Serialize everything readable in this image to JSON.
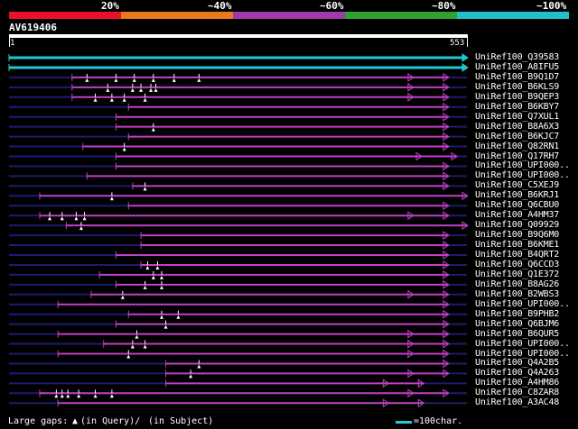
{
  "scale": {
    "labels": [
      "20%",
      "~40%",
      "~60%",
      "~80%",
      "~100%"
    ],
    "band_colors": [
      "#e8102a",
      "#e87a18",
      "#a03aa8",
      "#30a030",
      "#20c0c8"
    ]
  },
  "query": {
    "name": "AV619406",
    "start": "1",
    "end": "553"
  },
  "colors": {
    "magenta": "#c040c8",
    "cyan": "#20c8d0",
    "navy": "#1c1c70",
    "dark_magenta": "#6a1a70",
    "gap": "#ffffff"
  },
  "hits": [
    {
      "name": "UniRef100_Q39583",
      "color": "cyan",
      "start": 1,
      "end": 553,
      "gaps": [],
      "arrow": 0
    },
    {
      "name": "UniRef100_A8IFU5",
      "color": "cyan",
      "start": 1,
      "end": 553,
      "gaps": [],
      "arrow": 0
    },
    {
      "name": "UniRef100_B9Q1D7",
      "color": "magenta",
      "start": 77,
      "end": 530,
      "gaps": [
        95,
        130,
        152,
        175,
        200,
        230
      ],
      "arrow": 1
    },
    {
      "name": "UniRef100_B6KLS9",
      "color": "magenta",
      "start": 77,
      "end": 530,
      "gaps": [
        120,
        150,
        160,
        172,
        178
      ],
      "arrow": 1
    },
    {
      "name": "UniRef100_B9QEP3",
      "color": "magenta",
      "start": 77,
      "end": 530,
      "gaps": [
        105,
        125,
        140,
        165
      ],
      "arrow": 1
    },
    {
      "name": "UniRef100_B6KBY7",
      "color": "magenta",
      "start": 145,
      "end": 530,
      "gaps": [],
      "arrow": 0
    },
    {
      "name": "UniRef100_Q7XUL1",
      "color": "magenta",
      "start": 130,
      "end": 530,
      "gaps": [],
      "arrow": 0
    },
    {
      "name": "UniRef100_B8A6X3",
      "color": "magenta",
      "start": 130,
      "end": 530,
      "gaps": [
        175
      ],
      "arrow": 0
    },
    {
      "name": "UniRef100_B6KJC7",
      "color": "magenta",
      "start": 145,
      "end": 530,
      "gaps": [],
      "arrow": 0
    },
    {
      "name": "UniRef100_Q82RN1",
      "color": "magenta",
      "start": 90,
      "end": 530,
      "gaps": [
        140
      ],
      "arrow": 0
    },
    {
      "name": "UniRef100_Q17RH7",
      "color": "magenta",
      "start": 130,
      "end": 540,
      "gaps": [],
      "arrow": 1
    },
    {
      "name": "UniRef100_UPI000..",
      "color": "magenta",
      "start": 130,
      "end": 530,
      "gaps": [],
      "arrow": 0
    },
    {
      "name": "UniRef100_UPI000..",
      "color": "magenta",
      "start": 95,
      "end": 530,
      "gaps": [],
      "arrow": 0
    },
    {
      "name": "UniRef100_C5XEJ9",
      "color": "magenta",
      "start": 150,
      "end": 530,
      "gaps": [
        165
      ],
      "arrow": 0
    },
    {
      "name": "UniRef100_B6KRJ1",
      "color": "magenta",
      "start": 38,
      "end": 553,
      "gaps": [
        125
      ],
      "arrow": 0
    },
    {
      "name": "UniRef100_Q6CBU0",
      "color": "magenta",
      "start": 145,
      "end": 530,
      "gaps": [],
      "arrow": 0
    },
    {
      "name": "UniRef100_A4HM37",
      "color": "magenta",
      "start": 38,
      "end": 530,
      "gaps": [
        50,
        65,
        82,
        92
      ],
      "arrow": 1
    },
    {
      "name": "UniRef100_Q09929",
      "color": "magenta",
      "start": 70,
      "end": 553,
      "gaps": [
        88
      ],
      "arrow": 0
    },
    {
      "name": "UniRef100_B9Q6M0",
      "color": "magenta",
      "start": 160,
      "end": 530,
      "gaps": [],
      "arrow": 0
    },
    {
      "name": "UniRef100_B6KME1",
      "color": "magenta",
      "start": 160,
      "end": 530,
      "gaps": [],
      "arrow": 0
    },
    {
      "name": "UniRef100_B4QRT2",
      "color": "magenta",
      "start": 130,
      "end": 530,
      "gaps": [],
      "arrow": 0
    },
    {
      "name": "UniRef100_Q6CCD3",
      "color": "magenta",
      "start": 160,
      "end": 530,
      "gaps": [
        168,
        180
      ],
      "arrow": 0
    },
    {
      "name": "UniRef100_Q1E372",
      "color": "magenta",
      "start": 110,
      "end": 530,
      "gaps": [
        175,
        185
      ],
      "arrow": 0
    },
    {
      "name": "UniRef100_B8AG26",
      "color": "magenta",
      "start": 130,
      "end": 530,
      "gaps": [
        165,
        185
      ],
      "arrow": 0
    },
    {
      "name": "UniRef100_B2WBS3",
      "color": "magenta",
      "start": 100,
      "end": 530,
      "gaps": [
        138
      ],
      "arrow": 1
    },
    {
      "name": "UniRef100_UPI000..",
      "color": "magenta",
      "start": 60,
      "end": 530,
      "gaps": [],
      "arrow": 0
    },
    {
      "name": "UniRef100_B9PHB2",
      "color": "magenta",
      "start": 145,
      "end": 530,
      "gaps": [
        185,
        205
      ],
      "arrow": 0
    },
    {
      "name": "UniRef100_Q6BJM6",
      "color": "magenta",
      "start": 130,
      "end": 530,
      "gaps": [
        190
      ],
      "arrow": 0
    },
    {
      "name": "UniRef100_B6QUR5",
      "color": "magenta",
      "start": 60,
      "end": 530,
      "gaps": [
        155
      ],
      "arrow": 1
    },
    {
      "name": "UniRef100_UPI000..",
      "color": "magenta",
      "start": 115,
      "end": 530,
      "gaps": [
        150,
        165
      ],
      "arrow": 1
    },
    {
      "name": "UniRef100_UPI000..",
      "color": "magenta",
      "start": 60,
      "end": 530,
      "gaps": [
        145
      ],
      "arrow": 1
    },
    {
      "name": "UniRef100_Q4A2B5",
      "color": "magenta",
      "start": 190,
      "end": 530,
      "gaps": [
        230
      ],
      "arrow": 0
    },
    {
      "name": "UniRef100_Q4A263",
      "color": "magenta",
      "start": 190,
      "end": 530,
      "gaps": [
        220
      ],
      "arrow": 1
    },
    {
      "name": "UniRef100_A4HM86",
      "color": "magenta",
      "start": 190,
      "end": 500,
      "gaps": [],
      "arrow": 1
    },
    {
      "name": "UniRef100_C8ZAR8",
      "color": "magenta",
      "start": 38,
      "end": 530,
      "gaps": [
        58,
        65,
        72,
        85,
        105,
        125
      ],
      "arrow": 1
    },
    {
      "name": "UniRef100_A3AC48",
      "color": "magenta",
      "start": 60,
      "end": 500,
      "gaps": [],
      "arrow": 1
    }
  ],
  "footer": {
    "gaps_label": "Large gaps:",
    "query_note": "(in Query)/",
    "subject_note": "(in Subject)",
    "legend_text": "=100char."
  }
}
